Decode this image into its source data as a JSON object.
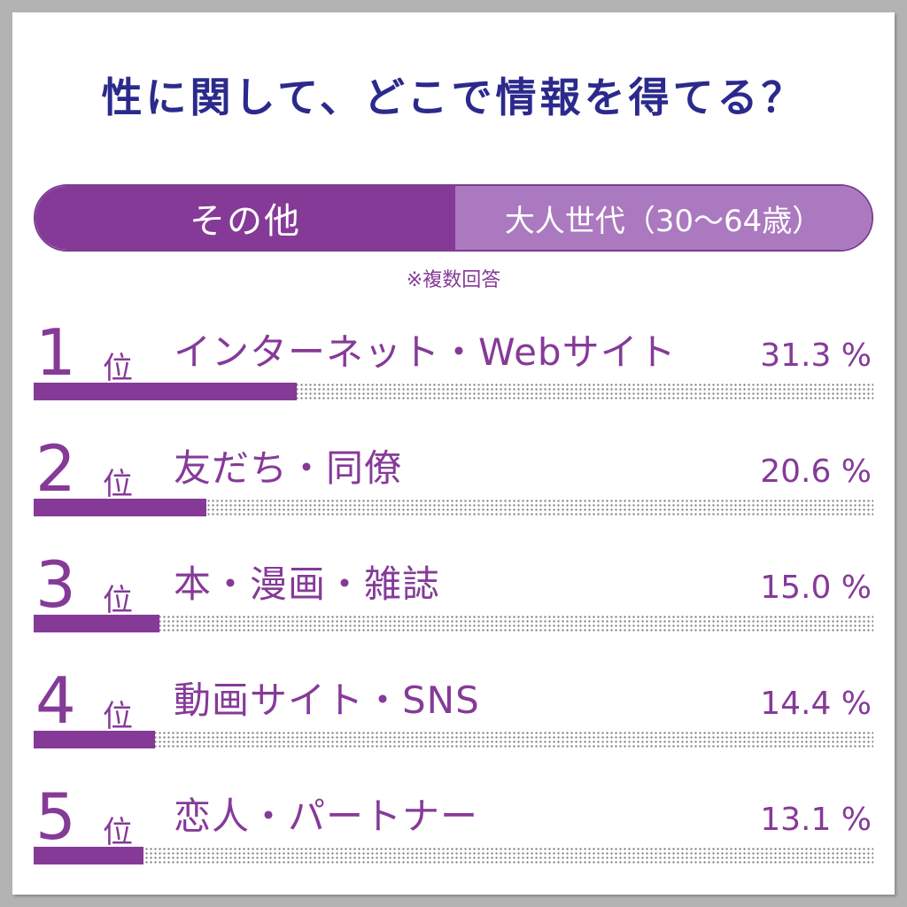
{
  "title": "性に関して、どこで情報を得てる？",
  "tabs": {
    "active": "その他",
    "inactive": "大人世代（30〜64歳）"
  },
  "note": "※複数回答",
  "colors": {
    "accent": "#863a98",
    "accent_light": "#ab79bf",
    "title": "#2b2a8c"
  },
  "chart_data": {
    "type": "bar",
    "title": "性に関して、どこで情報を得てる？",
    "rank_suffix": "位",
    "unit": "%",
    "ylim": [
      0,
      100
    ],
    "categories": [
      "インターネット・Webサイト",
      "友だち・同僚",
      "本・漫画・雑誌",
      "動画サイト・SNS",
      "恋人・パートナー"
    ],
    "ranks": [
      "1",
      "2",
      "3",
      "4",
      "5"
    ],
    "values": [
      31.3,
      20.6,
      15.0,
      14.4,
      13.1
    ],
    "value_labels": [
      "31.3 %",
      "20.6 %",
      "15.0 %",
      "14.4 %",
      "13.1 %"
    ]
  }
}
